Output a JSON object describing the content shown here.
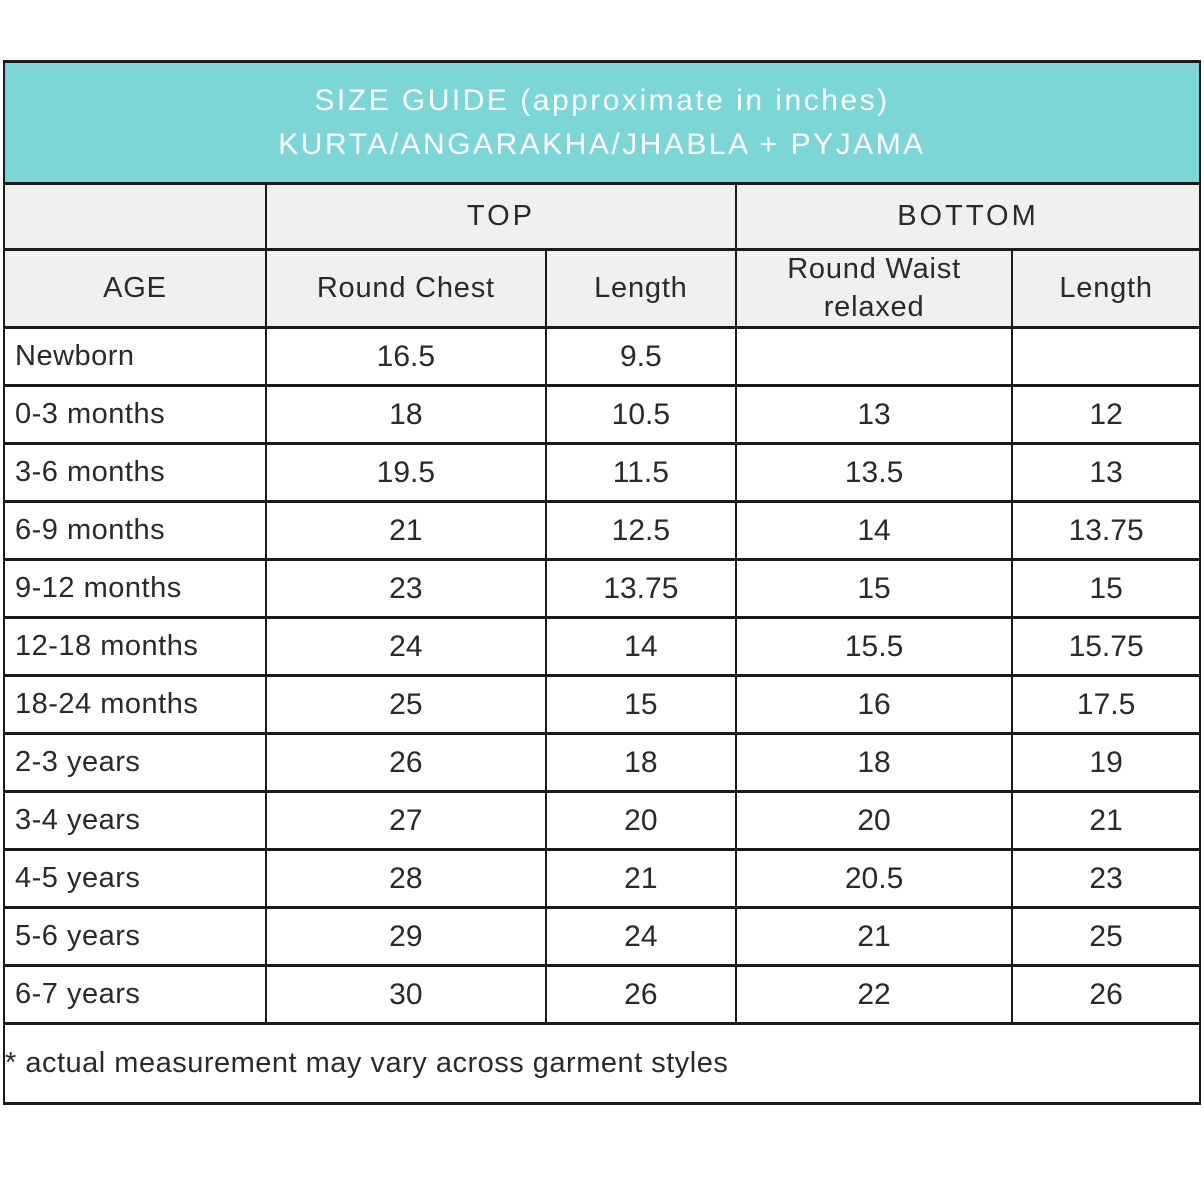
{
  "banner": {
    "title_line1": "SIZE GUIDE (approximate in inches)",
    "title_line2": "KURTA/ANGARAKHA/JHABLA + PYJAMA"
  },
  "table": {
    "group_headers": {
      "top": "TOP",
      "bottom": "BOTTOM"
    },
    "column_headers": {
      "age": "AGE",
      "round_chest": "Round Chest",
      "top_length": "Length",
      "round_waist": "Round Waist relaxed",
      "bottom_length": "Length"
    },
    "rows": [
      {
        "age": "Newborn",
        "round_chest": "16.5",
        "top_length": "9.5",
        "round_waist": "",
        "bottom_length": ""
      },
      {
        "age": "0-3 months",
        "round_chest": "18",
        "top_length": "10.5",
        "round_waist": "13",
        "bottom_length": "12"
      },
      {
        "age": "3-6 months",
        "round_chest": "19.5",
        "top_length": "11.5",
        "round_waist": "13.5",
        "bottom_length": "13"
      },
      {
        "age": "6-9 months",
        "round_chest": "21",
        "top_length": "12.5",
        "round_waist": "14",
        "bottom_length": "13.75"
      },
      {
        "age": "9-12 months",
        "round_chest": "23",
        "top_length": "13.75",
        "round_waist": "15",
        "bottom_length": "15"
      },
      {
        "age": "12-18 months",
        "round_chest": "24",
        "top_length": "14",
        "round_waist": "15.5",
        "bottom_length": "15.75"
      },
      {
        "age": "18-24 months",
        "round_chest": "25",
        "top_length": "15",
        "round_waist": "16",
        "bottom_length": "17.5"
      },
      {
        "age": "2-3 years",
        "round_chest": "26",
        "top_length": "18",
        "round_waist": "18",
        "bottom_length": "19"
      },
      {
        "age": "3-4 years",
        "round_chest": "27",
        "top_length": "20",
        "round_waist": "20",
        "bottom_length": "21"
      },
      {
        "age": "4-5 years",
        "round_chest": "28",
        "top_length": "21",
        "round_waist": "20.5",
        "bottom_length": "23"
      },
      {
        "age": "5-6 years",
        "round_chest": "29",
        "top_length": "24",
        "round_waist": "21",
        "bottom_length": "25"
      },
      {
        "age": "6-7 years",
        "round_chest": "30",
        "top_length": "26",
        "round_waist": "22",
        "bottom_length": "26"
      }
    ]
  },
  "footnote": "* actual measurement may vary across garment styles",
  "colors": {
    "banner_bg": "#7cd6d6",
    "banner_text": "#ffffff",
    "header_bg": "#f0f0ef",
    "border": "#1b1b1b",
    "text": "#2a2a2a"
  },
  "chart_data": {
    "type": "table",
    "title": "SIZE GUIDE (approximate in inches) KURTA/ANGARAKHA/JHABLA + PYJAMA",
    "units": "inches",
    "column_groups": [
      "",
      "TOP",
      "TOP",
      "BOTTOM",
      "BOTTOM"
    ],
    "columns": [
      "AGE",
      "Round Chest",
      "Length",
      "Round Waist relaxed",
      "Length"
    ],
    "rows": [
      [
        "Newborn",
        16.5,
        9.5,
        null,
        null
      ],
      [
        "0-3 months",
        18,
        10.5,
        13,
        12
      ],
      [
        "3-6 months",
        19.5,
        11.5,
        13.5,
        13
      ],
      [
        "6-9 months",
        21,
        12.5,
        14,
        13.75
      ],
      [
        "9-12 months",
        23,
        13.75,
        15,
        15
      ],
      [
        "12-18 months",
        24,
        14,
        15.5,
        15.75
      ],
      [
        "18-24 months",
        25,
        15,
        16,
        17.5
      ],
      [
        "2-3 years",
        26,
        18,
        18,
        19
      ],
      [
        "3-4 years",
        27,
        20,
        20,
        21
      ],
      [
        "4-5 years",
        28,
        21,
        20.5,
        23
      ],
      [
        "5-6 years",
        29,
        24,
        21,
        25
      ],
      [
        "6-7 years",
        30,
        26,
        22,
        26
      ]
    ],
    "footnote": "* actual measurement may vary across garment styles"
  }
}
